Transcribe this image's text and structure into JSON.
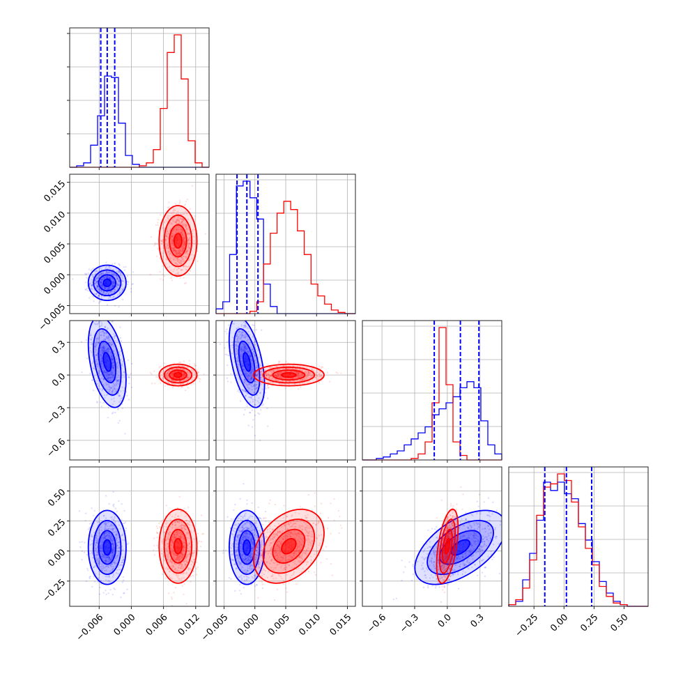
{
  "chart_data": {
    "type": "corner",
    "title": "",
    "colors": {
      "blue": "#0000ff",
      "red": "#ff0000"
    },
    "grid": true,
    "series": [
      {
        "color": "blue",
        "quantiles": [
          [
            -0.0057,
            -0.0045,
            -0.0031
          ],
          [
            -0.0029,
            -0.0013,
            0.0005
          ],
          [
            -0.12,
            0.12,
            0.29
          ],
          [
            -0.16,
            0.02,
            0.23
          ]
        ]
      },
      {
        "color": "red",
        "quantiles": [
          null,
          null,
          null,
          null
        ]
      }
    ],
    "params": [
      {
        "range": [
          -0.0115,
          0.0145
        ],
        "ticks": [
          -0.006,
          0.0,
          0.006,
          0.012
        ],
        "tick_labels": [
          "−0.006",
          "0.000",
          "0.006",
          "0.012"
        ]
      },
      {
        "range": [
          -0.0063,
          0.0163
        ],
        "ticks": [
          -0.005,
          0.0,
          0.005,
          0.01,
          0.015
        ],
        "tick_labels": [
          "−0.005",
          "0.000",
          "0.005",
          "0.010",
          "0.015"
        ]
      },
      {
        "range": [
          -0.78,
          0.5
        ],
        "ticks": [
          -0.6,
          -0.3,
          0.0,
          0.3
        ],
        "tick_labels": [
          "−0.6",
          "−0.3",
          "0.0",
          "0.3"
        ]
      },
      {
        "range": [
          -0.46,
          0.7
        ],
        "ticks": [
          -0.25,
          0.0,
          0.25,
          0.5
        ],
        "tick_labels": [
          "−0.25",
          "0.00",
          "0.25",
          "0.50"
        ]
      }
    ],
    "histograms": [
      {
        "bins": [
          -0.0115,
          -0.0102,
          -0.0089,
          -0.0076,
          -0.0063,
          -0.005,
          -0.0037,
          -0.0024,
          -0.0011,
          0.0002,
          0.0015,
          0.0028,
          0.0041,
          0.0054,
          0.0067,
          0.008,
          0.0093,
          0.0106,
          0.0119,
          0.0132,
          0.0145
        ],
        "blue": [
          0,
          1,
          3,
          15,
          35,
          62,
          61,
          30,
          8,
          2,
          0,
          0,
          0,
          0,
          0,
          0,
          0,
          0,
          0,
          0
        ],
        "red": [
          0,
          0,
          0,
          0,
          0,
          0,
          0,
          0,
          0,
          0,
          1,
          3,
          12,
          40,
          78,
          90,
          60,
          18,
          3,
          0
        ]
      },
      {
        "bins": [
          -0.0063,
          -0.0052,
          -0.0041,
          -0.003,
          -0.0019,
          -0.0008,
          0.0003,
          0.0014,
          0.0025,
          0.0036,
          0.0047,
          0.0058,
          0.0069,
          0.008,
          0.0091,
          0.0102,
          0.0113,
          0.0124,
          0.0135,
          0.0146,
          0.0163
        ],
        "blue": [
          4,
          10,
          50,
          108,
          112,
          98,
          80,
          25,
          6,
          0,
          0,
          0,
          0,
          0,
          0,
          0,
          0,
          0,
          0,
          0
        ],
        "red": [
          0,
          0,
          0,
          0,
          0,
          2,
          10,
          42,
          68,
          85,
          95,
          88,
          70,
          50,
          25,
          15,
          8,
          3,
          1,
          0
        ]
      },
      {
        "bins": [
          -0.78,
          -0.716,
          -0.652,
          -0.588,
          -0.524,
          -0.46,
          -0.396,
          -0.332,
          -0.268,
          -0.204,
          -0.14,
          -0.076,
          -0.012,
          0.052,
          0.116,
          0.18,
          0.244,
          0.308,
          0.372,
          0.436,
          0.5
        ],
        "blue": [
          0,
          0,
          1,
          2,
          4,
          6,
          10,
          14,
          18,
          22,
          30,
          34,
          38,
          42,
          48,
          52,
          48,
          26,
          10,
          4
        ],
        "red": [
          0,
          0,
          0,
          0,
          0,
          0,
          0,
          1,
          4,
          12,
          38,
          88,
          50,
          12,
          3,
          0,
          0,
          0,
          0,
          0
        ]
      },
      {
        "bins": [
          -0.46,
          -0.402,
          -0.344,
          -0.286,
          -0.228,
          -0.17,
          -0.112,
          -0.054,
          0.004,
          0.062,
          0.12,
          0.178,
          0.236,
          0.294,
          0.352,
          0.41,
          0.468,
          0.526,
          0.584,
          0.642,
          0.7
        ],
        "blue": [
          1,
          3,
          16,
          32,
          52,
          75,
          70,
          75,
          68,
          65,
          50,
          40,
          27,
          15,
          8,
          3,
          1,
          0,
          0,
          0
        ],
        "red": [
          1,
          4,
          11,
          28,
          55,
          72,
          74,
          80,
          76,
          63,
          48,
          35,
          25,
          12,
          6,
          2,
          1,
          0,
          0,
          0
        ]
      }
    ],
    "clouds": [
      {
        "blue": {
          "mean": [
            -0.0045,
            -0.0013,
            0.12,
            0.03
          ],
          "sd": [
            0.0016,
            0.0013,
            0.19,
            0.14
          ]
        },
        "red": {
          "mean": [
            0.0087,
            0.0055,
            0.0,
            0.04
          ],
          "sd": [
            0.0016,
            0.0026,
            0.045,
            0.14
          ]
        }
      }
    ],
    "correlations": {
      "blue": [
        [
          1,
          0.0,
          -0.4,
          0.0
        ],
        [
          0.0,
          1,
          -0.5,
          0.0
        ],
        [
          -0.4,
          -0.5,
          1,
          0.55
        ],
        [
          0.0,
          0.0,
          0.55,
          1
        ]
      ],
      "red": [
        [
          1,
          0.0,
          0.0,
          0.0
        ],
        [
          0.0,
          1,
          0.0,
          0.35
        ],
        [
          0.0,
          0.0,
          1,
          0.5
        ],
        [
          0.0,
          0.35,
          0.5,
          1
        ]
      ]
    }
  }
}
